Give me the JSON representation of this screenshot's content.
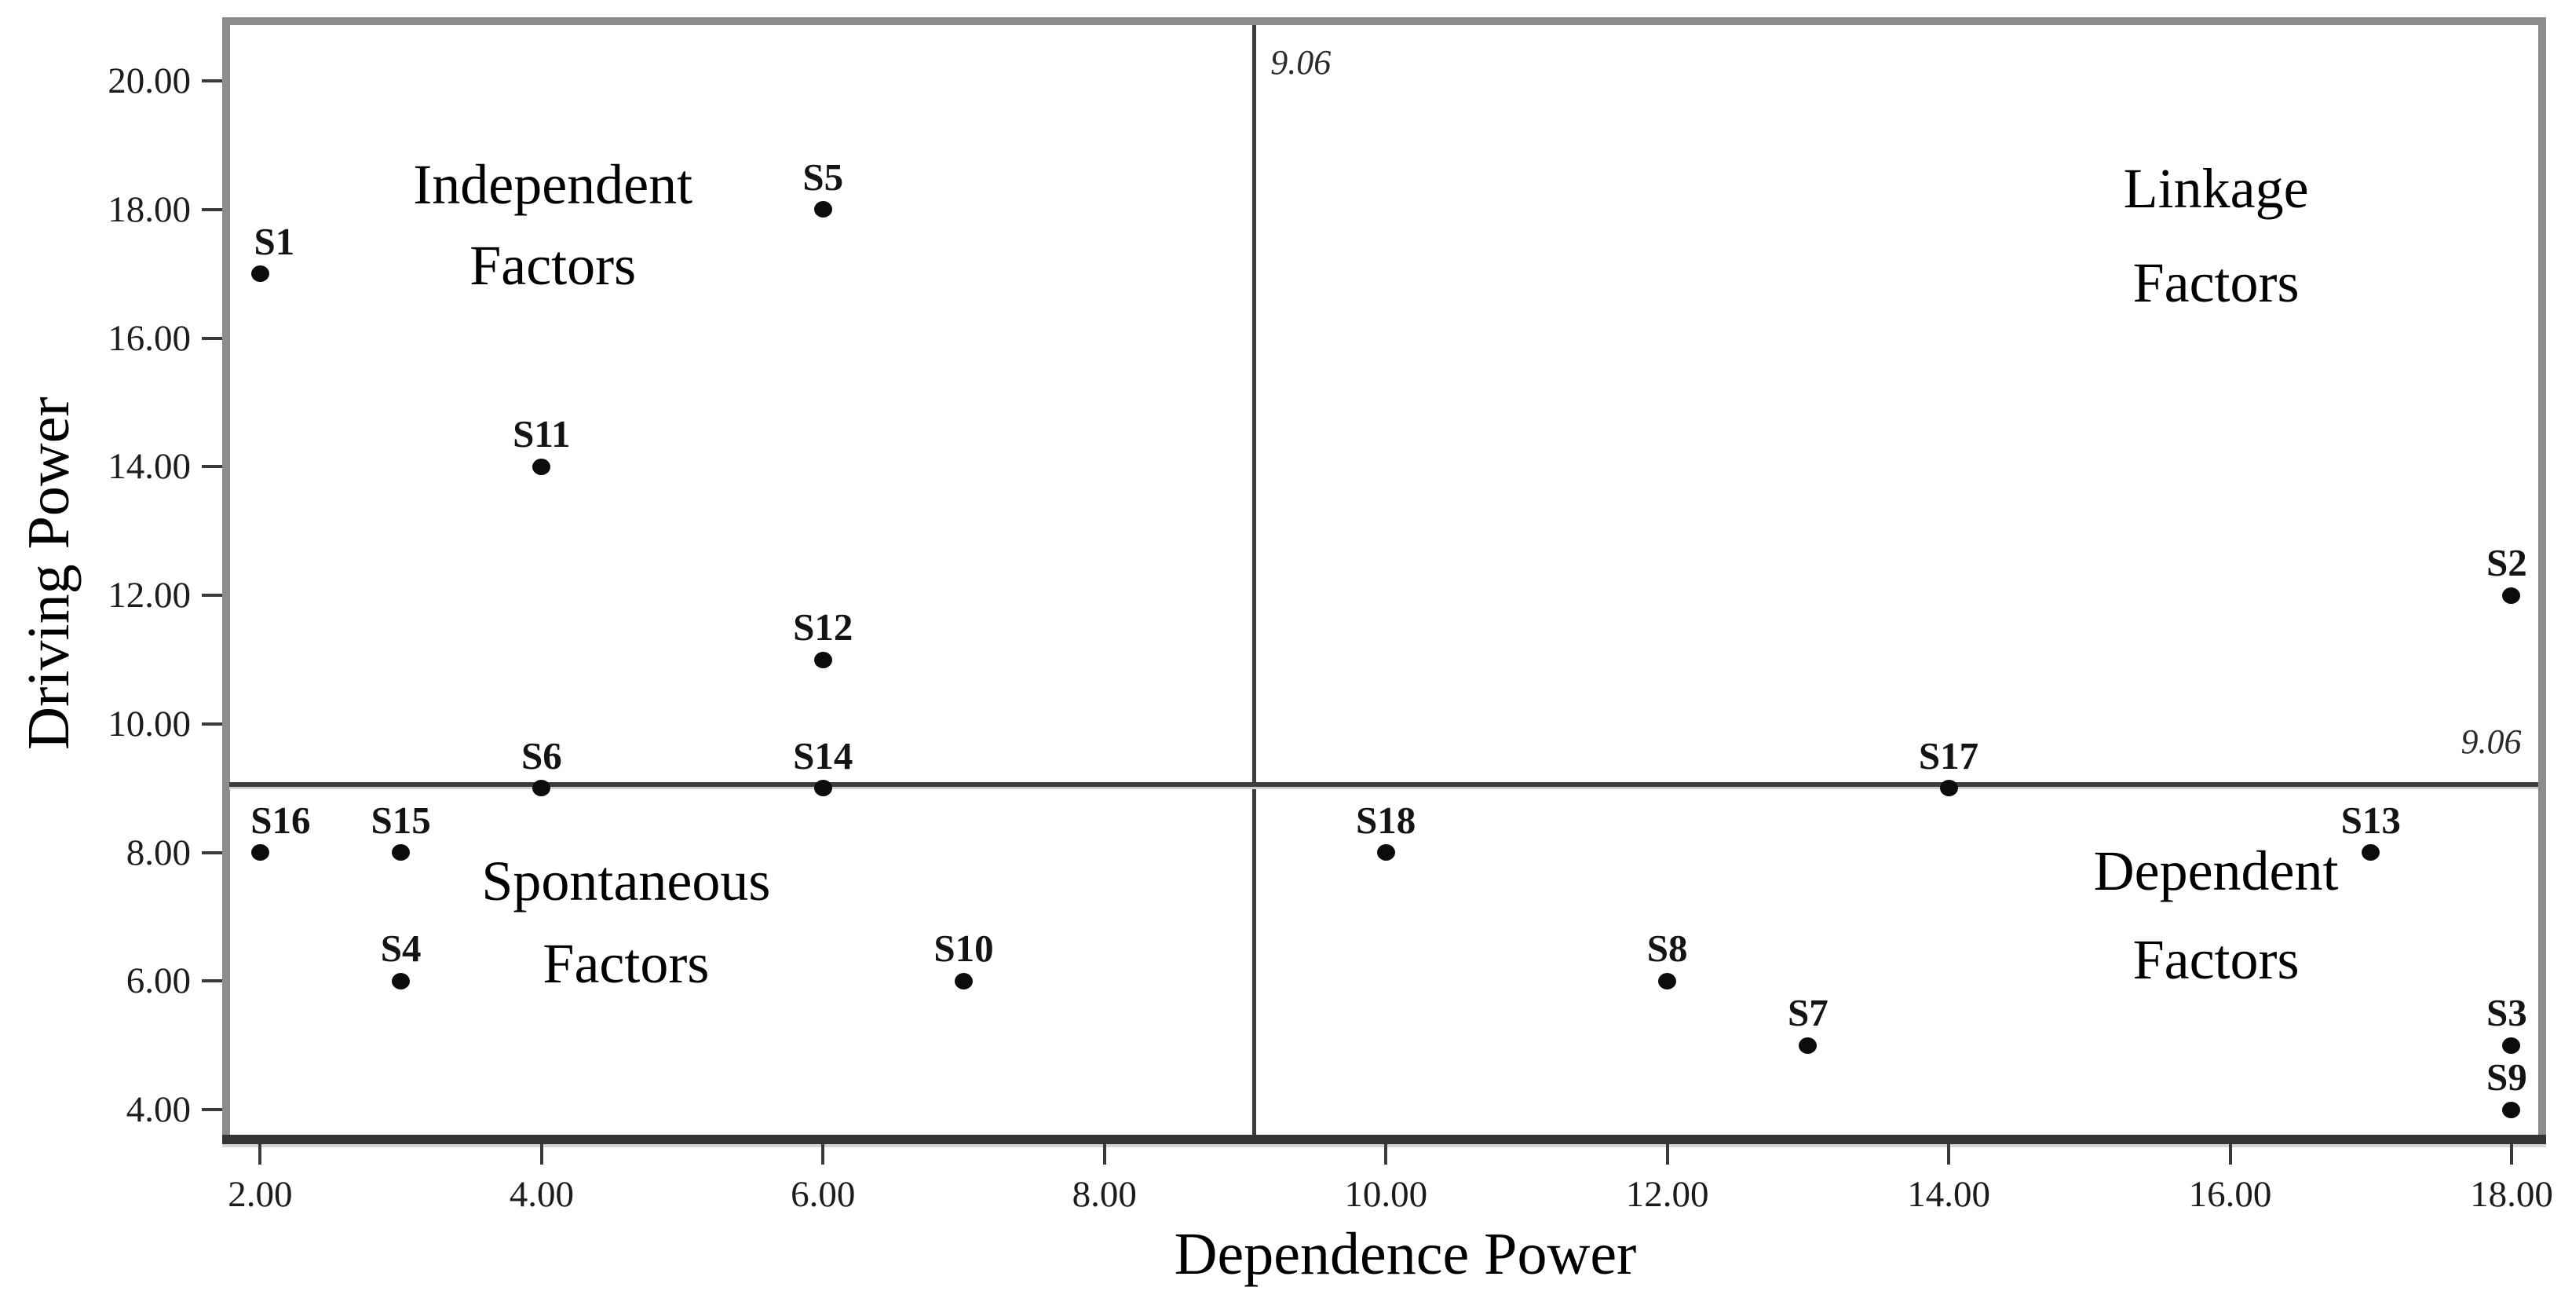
{
  "axes": {
    "x_title": "Dependence Power",
    "y_title": "Driving Power"
  },
  "style": {
    "background": "#ffffff",
    "dot_color": "#0c0c0c",
    "border_gray": "#8c8c8c",
    "border_dark": "#343434",
    "border_shadow": "#d5d5d5",
    "divider_color": "#3d3d3d",
    "divider_shadow": "#cfcfcf",
    "tick_color": "#3a3a3a",
    "text_color": "#1c1c1c"
  },
  "chart_data": {
    "type": "scatter",
    "title": "",
    "xlabel": "Dependence Power",
    "ylabel": "Driving Power",
    "xlim": [
      1.78,
      18.19
    ],
    "ylim": [
      3.61,
      20.87
    ],
    "grid": false,
    "legend": "none",
    "x_ticks": [
      {
        "value": 2,
        "label": "2.00"
      },
      {
        "value": 4,
        "label": "4.00"
      },
      {
        "value": 6,
        "label": "6.00"
      },
      {
        "value": 8,
        "label": "8.00"
      },
      {
        "value": 10,
        "label": "10.00"
      },
      {
        "value": 12,
        "label": "12.00"
      },
      {
        "value": 14,
        "label": "14.00"
      },
      {
        "value": 16,
        "label": "16.00"
      },
      {
        "value": 18,
        "label": "18.00"
      }
    ],
    "y_ticks": [
      {
        "value": 4,
        "label": "4.00"
      },
      {
        "value": 6,
        "label": "6.00"
      },
      {
        "value": 8,
        "label": "8.00"
      },
      {
        "value": 10,
        "label": "10.00"
      },
      {
        "value": 12,
        "label": "12.00"
      },
      {
        "value": 14,
        "label": "14.00"
      },
      {
        "value": 16,
        "label": "16.00"
      },
      {
        "value": 18,
        "label": "18.00"
      },
      {
        "value": 20,
        "label": "20.00"
      }
    ],
    "dividers": {
      "x_value": 9.06,
      "y_value": 9.06
    },
    "divider_labels": [
      {
        "text": "9.06",
        "x": 9.18,
        "y": 20.28,
        "anchor": "left"
      },
      {
        "text": "9.06",
        "x": 18.07,
        "y": 9.72,
        "anchor": "right"
      }
    ],
    "points": [
      {
        "id": "S1",
        "x": 2,
        "y": 17,
        "label_dx": 18
      },
      {
        "id": "S5",
        "x": 6,
        "y": 18,
        "label_dx": 0
      },
      {
        "id": "S11",
        "x": 4,
        "y": 14,
        "label_dx": 0
      },
      {
        "id": "S12",
        "x": 6,
        "y": 11,
        "label_dx": 0
      },
      {
        "id": "S6",
        "x": 4,
        "y": 9,
        "label_dx": 0
      },
      {
        "id": "S14",
        "x": 6,
        "y": 9,
        "label_dx": 0
      },
      {
        "id": "S16",
        "x": 2,
        "y": 8,
        "label_dx": 26
      },
      {
        "id": "S15",
        "x": 3,
        "y": 8,
        "label_dx": 0
      },
      {
        "id": "S4",
        "x": 3,
        "y": 6,
        "label_dx": 0
      },
      {
        "id": "S10",
        "x": 7,
        "y": 6,
        "label_dx": 0
      },
      {
        "id": "S18",
        "x": 10,
        "y": 8,
        "label_dx": 0
      },
      {
        "id": "S8",
        "x": 12,
        "y": 6,
        "label_dx": 0
      },
      {
        "id": "S7",
        "x": 13,
        "y": 5,
        "label_dx": 0
      },
      {
        "id": "S17",
        "x": 14,
        "y": 9,
        "label_dx": 0
      },
      {
        "id": "S13",
        "x": 17,
        "y": 8,
        "label_dx": 0
      },
      {
        "id": "S2",
        "x": 18,
        "y": 12,
        "label_dx": -6
      },
      {
        "id": "S3",
        "x": 18,
        "y": 5,
        "label_dx": -6
      },
      {
        "id": "S9",
        "x": 18,
        "y": 4,
        "label_dx": -6
      }
    ],
    "quadrant_labels": [
      {
        "name": "independent-factors",
        "lines": [
          {
            "text": "Independent",
            "x": 4.08,
            "y": 18.39
          },
          {
            "text": "Factors",
            "x": 4.08,
            "y": 17.13
          }
        ]
      },
      {
        "name": "linkage-factors",
        "lines": [
          {
            "text": "Linkage",
            "x": 15.9,
            "y": 18.33
          },
          {
            "text": "Factors",
            "x": 15.9,
            "y": 16.86
          }
        ]
      },
      {
        "name": "spontaneous-factors",
        "lines": [
          {
            "text": "Spontaneous",
            "x": 4.6,
            "y": 7.55
          },
          {
            "text": "Factors",
            "x": 4.6,
            "y": 6.27
          }
        ]
      },
      {
        "name": "dependent-factors",
        "lines": [
          {
            "text": "Dependent",
            "x": 15.9,
            "y": 7.72
          },
          {
            "text": "Factors",
            "x": 15.9,
            "y": 6.34
          }
        ]
      }
    ]
  }
}
